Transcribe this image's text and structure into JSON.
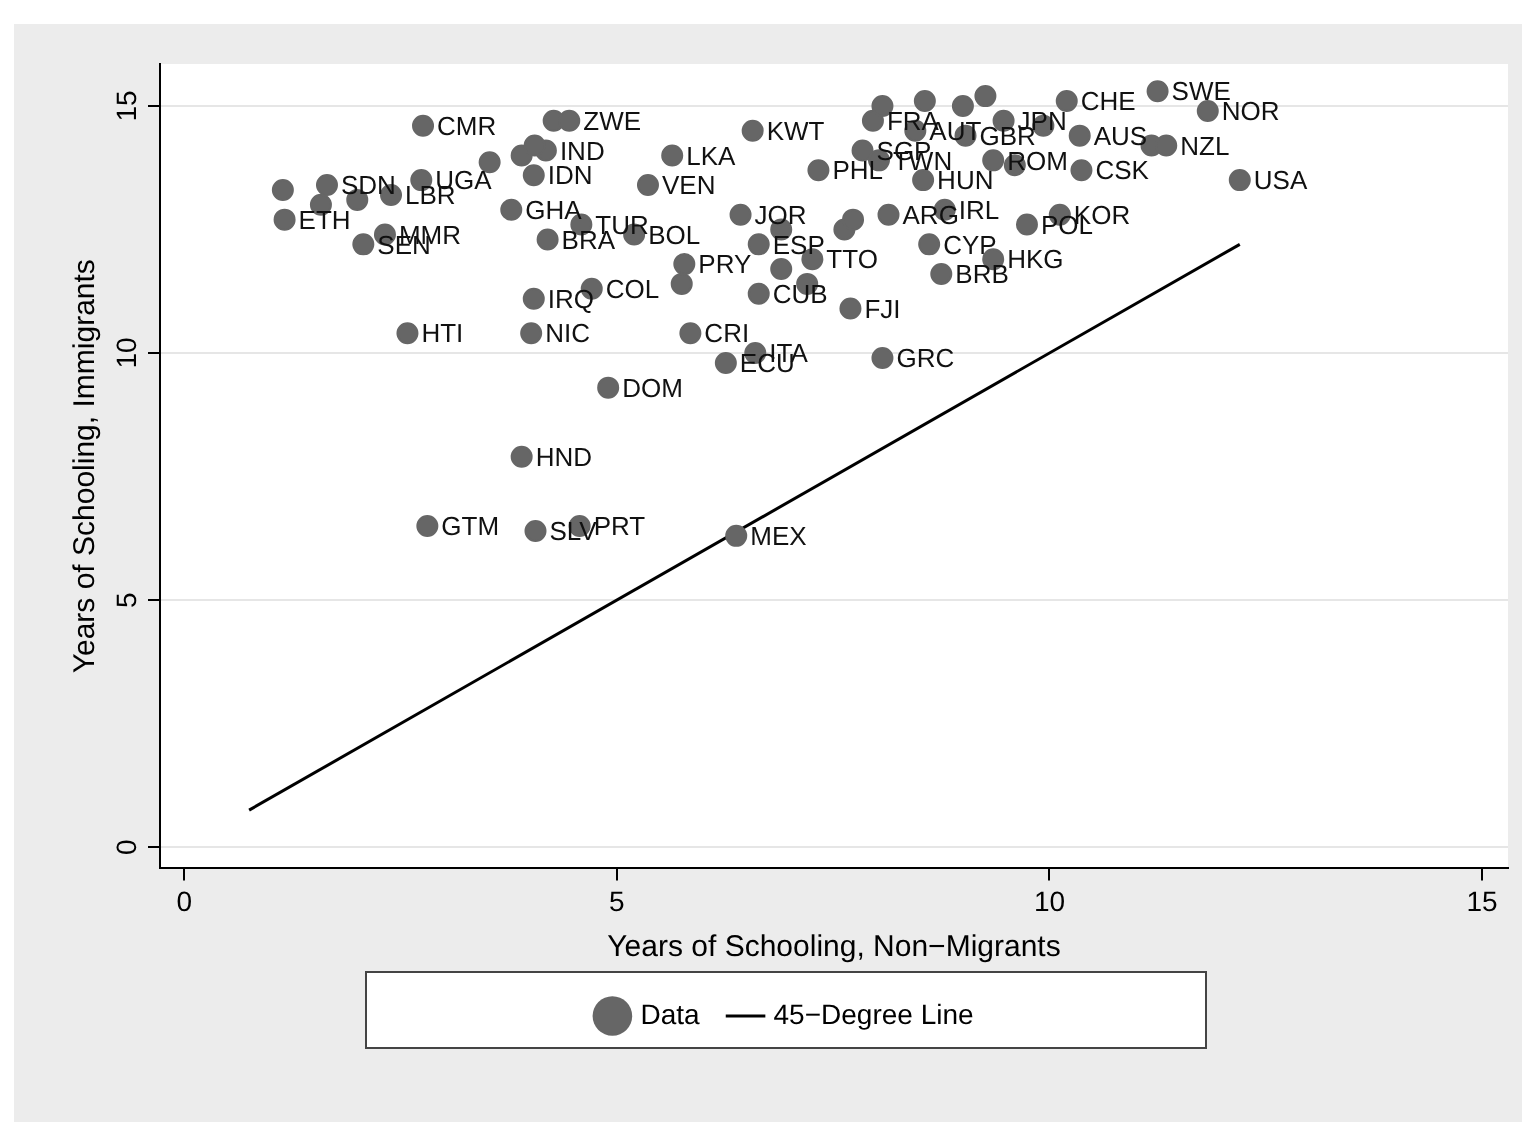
{
  "chart_data": {
    "type": "scatter",
    "xlabel": "Years of Schooling, Non−Migrants",
    "ylabel": "Years of Schooling, Immigrants",
    "xlim": [
      -0.28,
      15.3
    ],
    "xticks": [
      0,
      5,
      10,
      15
    ],
    "ylim": [
      -0.43,
      15.85
    ],
    "yticks": [
      0,
      5,
      10,
      15
    ],
    "grid": "y",
    "legend": "bottom",
    "marker": "circle",
    "series": [
      {
        "name": "Data",
        "color": "#666666",
        "x": [
          2.76,
          4.27,
          4.45,
          4.18,
          3.53,
          3.9,
          4.05,
          4.04,
          5.36,
          5.64,
          6.57,
          2.74,
          1.65,
          1.14,
          1.16,
          1.58,
          2.0,
          2.39,
          2.32,
          2.07,
          3.78,
          4.59,
          4.2,
          5.2,
          4.04,
          2.58,
          4.01,
          4.71,
          4.9,
          5.85,
          6.26,
          6.6,
          8.07,
          7.7,
          3.9,
          2.81,
          4.06,
          4.57,
          6.38,
          6.43,
          6.64,
          6.64,
          7.33,
          7.84,
          8.03,
          8.54,
          7.96,
          8.07,
          8.56,
          9.0,
          9.26,
          8.45,
          9.03,
          9.47,
          9.35,
          9.6,
          8.79,
          8.14,
          9.74,
          8.61,
          8.75,
          9.35,
          10.12,
          7.26,
          7.2,
          5.78,
          6.9,
          7.63,
          7.73,
          6.9,
          5.75,
          11.25,
          11.83,
          12.2,
          10.35,
          11.18,
          11.35,
          10.37,
          10.2,
          9.93
        ],
        "values": [
          14.6,
          14.7,
          14.7,
          14.1,
          13.86,
          14.0,
          14.2,
          13.6,
          13.4,
          14.0,
          14.5,
          13.5,
          13.4,
          13.3,
          12.7,
          13.0,
          13.1,
          13.2,
          12.4,
          12.2,
          12.9,
          12.6,
          12.3,
          12.4,
          11.1,
          10.4,
          10.4,
          11.3,
          9.3,
          10.4,
          9.8,
          10.0,
          9.9,
          10.9,
          7.9,
          6.5,
          6.4,
          6.5,
          6.3,
          12.8,
          12.2,
          11.2,
          13.7,
          14.1,
          13.9,
          13.5,
          14.7,
          15.0,
          15.1,
          15.0,
          15.2,
          14.5,
          14.4,
          14.7,
          13.9,
          13.8,
          12.9,
          12.8,
          12.6,
          12.2,
          11.6,
          11.9,
          12.8,
          11.9,
          11.4,
          11.8,
          12.5,
          12.5,
          12.7,
          11.7,
          11.4,
          15.3,
          14.9,
          13.5,
          14.4,
          14.2,
          14.2,
          13.7,
          15.1,
          14.6
        ]
      },
      {
        "name": "45−Degree Line",
        "type": "line",
        "color": "#000000",
        "marker": "none",
        "line_style": "solid",
        "x": [
          0.75,
          12.2
        ],
        "values": [
          0.75,
          12.2
        ]
      }
    ],
    "annotations": [
      {
        "text": "CMR",
        "x": 2.76,
        "y": 14.6
      },
      {
        "text": "ZWE",
        "x": 4.45,
        "y": 14.7
      },
      {
        "text": "IND",
        "x": 4.18,
        "y": 14.1
      },
      {
        "text": "IDN",
        "x": 4.04,
        "y": 13.6
      },
      {
        "text": "VEN",
        "x": 5.36,
        "y": 13.4
      },
      {
        "text": "LKA",
        "x": 5.64,
        "y": 14.0
      },
      {
        "text": "KWT",
        "x": 6.57,
        "y": 14.5
      },
      {
        "text": "UGA",
        "x": 2.74,
        "y": 13.5
      },
      {
        "text": "SDN",
        "x": 1.65,
        "y": 13.4
      },
      {
        "text": "ETH",
        "x": 1.16,
        "y": 12.7
      },
      {
        "text": "LBR",
        "x": 2.39,
        "y": 13.2
      },
      {
        "text": "MMR",
        "x": 2.32,
        "y": 12.4
      },
      {
        "text": "SEN",
        "x": 2.07,
        "y": 12.2
      },
      {
        "text": "GHA",
        "x": 3.78,
        "y": 12.9
      },
      {
        "text": "TUR",
        "x": 4.59,
        "y": 12.6
      },
      {
        "text": "BRA",
        "x": 4.2,
        "y": 12.3
      },
      {
        "text": "BOL",
        "x": 5.2,
        "y": 12.4
      },
      {
        "text": "IRQ",
        "x": 4.04,
        "y": 11.1
      },
      {
        "text": "HTI",
        "x": 2.58,
        "y": 10.4
      },
      {
        "text": "NIC",
        "x": 4.01,
        "y": 10.4
      },
      {
        "text": "COL",
        "x": 4.71,
        "y": 11.3
      },
      {
        "text": "DOM",
        "x": 4.9,
        "y": 9.3
      },
      {
        "text": "CRI",
        "x": 5.85,
        "y": 10.4
      },
      {
        "text": "ECU",
        "x": 6.26,
        "y": 9.8
      },
      {
        "text": "ITA",
        "x": 6.6,
        "y": 10.0
      },
      {
        "text": "GRC",
        "x": 8.07,
        "y": 9.9
      },
      {
        "text": "FJI",
        "x": 7.7,
        "y": 10.9
      },
      {
        "text": "HND",
        "x": 3.9,
        "y": 7.9
      },
      {
        "text": "GTM",
        "x": 2.81,
        "y": 6.5
      },
      {
        "text": "SLV",
        "x": 4.06,
        "y": 6.4
      },
      {
        "text": "PRT",
        "x": 4.57,
        "y": 6.5
      },
      {
        "text": "MEX",
        "x": 6.38,
        "y": 6.3
      },
      {
        "text": "JOR",
        "x": 6.43,
        "y": 12.8
      },
      {
        "text": "ESP",
        "x": 6.64,
        "y": 12.2
      },
      {
        "text": "CUB",
        "x": 6.64,
        "y": 11.2
      },
      {
        "text": "PHL",
        "x": 7.33,
        "y": 13.7
      },
      {
        "text": "SGP",
        "x": 7.84,
        "y": 14.1
      },
      {
        "text": "TWN",
        "x": 8.03,
        "y": 13.9
      },
      {
        "text": "HUN",
        "x": 8.54,
        "y": 13.5
      },
      {
        "text": "FRA",
        "x": 7.96,
        "y": 14.7
      },
      {
        "text": "AUT",
        "x": 8.45,
        "y": 14.5
      },
      {
        "text": "GBR",
        "x": 9.03,
        "y": 14.4
      },
      {
        "text": "JPN",
        "x": 9.47,
        "y": 14.7
      },
      {
        "text": "ROM",
        "x": 9.35,
        "y": 13.9
      },
      {
        "text": "IRL",
        "x": 8.79,
        "y": 12.9
      },
      {
        "text": "ARG",
        "x": 8.14,
        "y": 12.8
      },
      {
        "text": "POL",
        "x": 9.74,
        "y": 12.6
      },
      {
        "text": "CYP",
        "x": 8.61,
        "y": 12.2
      },
      {
        "text": "BRB",
        "x": 8.75,
        "y": 11.6
      },
      {
        "text": "HKG",
        "x": 9.35,
        "y": 11.9
      },
      {
        "text": "KOR",
        "x": 10.12,
        "y": 12.8
      },
      {
        "text": "TTO",
        "x": 7.26,
        "y": 11.9
      },
      {
        "text": "PRY",
        "x": 5.78,
        "y": 11.8
      },
      {
        "text": "SWE",
        "x": 11.25,
        "y": 15.3
      },
      {
        "text": "NOR",
        "x": 11.83,
        "y": 14.9
      },
      {
        "text": "USA",
        "x": 12.2,
        "y": 13.5
      },
      {
        "text": "AUS",
        "x": 10.35,
        "y": 14.4
      },
      {
        "text": "NZL",
        "x": 11.35,
        "y": 14.2
      },
      {
        "text": "CSK",
        "x": 10.37,
        "y": 13.7
      },
      {
        "text": "CHE",
        "x": 10.2,
        "y": 15.1
      }
    ]
  }
}
